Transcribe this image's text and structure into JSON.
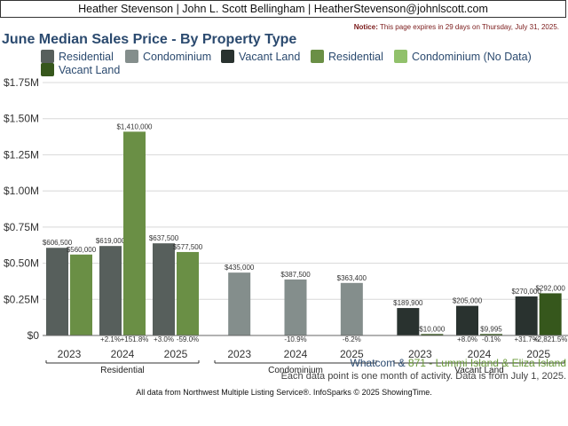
{
  "header": {
    "text": "Heather Stevenson | John L. Scott Bellingham | HeatherStevenson@johnlscott.com",
    "notice_label": "Notice:",
    "notice_text": "This page expires in 29 days on Thursday, July 31, 2025."
  },
  "colors": {
    "residential": "#575f5c",
    "condominium": "#848e8c",
    "vacant_land": "#29322f",
    "residential_alt": "#6a8f45",
    "condominium_no_data": "#91c16b",
    "vacant_land_alt": "#36571c",
    "title": "#2b4a6f"
  },
  "footer": {
    "location_prefix": "Whatcom",
    "location_amp": " & ",
    "location_area": "871 - Lummi Island & Eliza Island",
    "note": "Each data point is one month of activity. Data is from July 1, 2025.",
    "source": "All data from Northwest Multiple Listing Service®. InfoSparks © 2025 ShowingTime."
  },
  "chart_data": {
    "type": "bar",
    "title": "June Median Sales Price - By Property Type",
    "ylim": [
      0,
      1750000
    ],
    "y_ticks": [
      "$0",
      "$0.25M",
      "$0.50M",
      "$0.75M",
      "$1.00M",
      "$1.25M",
      "$1.50M",
      "$1.75M"
    ],
    "y_tick_values": [
      0,
      250000,
      500000,
      750000,
      1000000,
      1250000,
      1500000,
      1750000
    ],
    "grid": true,
    "legend": [
      {
        "name": "Residential",
        "color_key": "residential"
      },
      {
        "name": "Condominium",
        "color_key": "condominium"
      },
      {
        "name": "Vacant Land",
        "color_key": "vacant_land"
      },
      {
        "name": "Residential",
        "color_key": "residential_alt"
      },
      {
        "name": "Condominium (No Data)",
        "color_key": "condominium_no_data"
      },
      {
        "name": "Vacant Land",
        "color_key": "vacant_land_alt"
      }
    ],
    "groups": [
      {
        "name": "Residential",
        "years": [
          {
            "year": "2023",
            "bars": [
              {
                "value": 606500,
                "label": "$606,500",
                "color_key": "residential"
              },
              {
                "value": 560000,
                "label": "$560,000",
                "color_key": "residential_alt"
              }
            ],
            "changes": [
              "",
              ""
            ]
          },
          {
            "year": "2024",
            "bars": [
              {
                "value": 619000,
                "label": "$619,000",
                "color_key": "residential"
              },
              {
                "value": 1410000,
                "label": "$1,410,000",
                "color_key": "residential_alt"
              }
            ],
            "changes": [
              "+2.1%",
              "+151.8%"
            ]
          },
          {
            "year": "2025",
            "bars": [
              {
                "value": 637500,
                "label": "$637,500",
                "color_key": "residential"
              },
              {
                "value": 577500,
                "label": "$577,500",
                "color_key": "residential_alt"
              }
            ],
            "changes": [
              "+3.0%",
              "-59.0%"
            ]
          }
        ]
      },
      {
        "name": "Condominium",
        "years": [
          {
            "year": "2023",
            "bars": [
              {
                "value": 435000,
                "label": "$435,000",
                "color_key": "condominium"
              }
            ],
            "changes": [
              ""
            ]
          },
          {
            "year": "2024",
            "bars": [
              {
                "value": 387500,
                "label": "$387,500",
                "color_key": "condominium"
              }
            ],
            "changes": [
              "-10.9%"
            ]
          },
          {
            "year": "2025",
            "bars": [
              {
                "value": 363400,
                "label": "$363,400",
                "color_key": "condominium"
              }
            ],
            "changes": [
              "-6.2%"
            ]
          }
        ]
      },
      {
        "name": "Vacant Land",
        "years": [
          {
            "year": "2023",
            "bars": [
              {
                "value": 189900,
                "label": "$189,900",
                "color_key": "vacant_land"
              },
              {
                "value": 10000,
                "label": "$10,000",
                "color_key": "vacant_land_alt"
              }
            ],
            "changes": [
              "",
              ""
            ]
          },
          {
            "year": "2024",
            "bars": [
              {
                "value": 205000,
                "label": "$205,000",
                "color_key": "vacant_land"
              },
              {
                "value": 9995,
                "label": "$9,995",
                "color_key": "vacant_land_alt"
              }
            ],
            "changes": [
              "+8.0%",
              "-0.1%"
            ]
          },
          {
            "year": "2025",
            "bars": [
              {
                "value": 270000,
                "label": "$270,000",
                "color_key": "vacant_land"
              },
              {
                "value": 292000,
                "label": "$292,000",
                "color_key": "vacant_land_alt"
              }
            ],
            "changes": [
              "+31.7%",
              "+2,821.5%"
            ]
          }
        ]
      }
    ]
  }
}
